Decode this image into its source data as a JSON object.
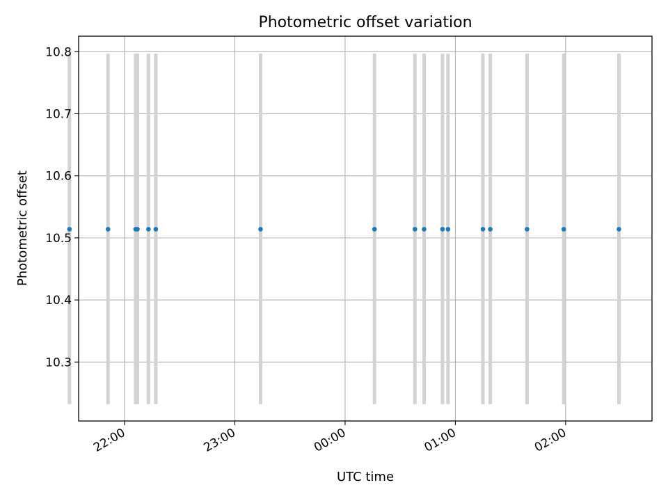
{
  "chart_data": {
    "type": "scatter",
    "title": "Photometric offset variation",
    "xlabel": "UTC time",
    "ylabel": "Photometric offset",
    "xlim": [
      "21:35",
      "02:47"
    ],
    "ylim": [
      10.205,
      10.825
    ],
    "x_ticks": [
      "22:00",
      "23:00",
      "00:00",
      "01:00",
      "02:00"
    ],
    "y_ticks": [
      "10.3",
      "10.4",
      "10.5",
      "10.6",
      "10.7",
      "10.8"
    ],
    "grid": true,
    "marker_color": "#1f77b4",
    "errorbar_color": "#d3d3d3",
    "points": [
      {
        "x": "21:30",
        "y": 10.514,
        "err_low": 10.232,
        "err_high": 10.797
      },
      {
        "x": "21:51",
        "y": 10.514,
        "err_low": 10.232,
        "err_high": 10.797
      },
      {
        "x": "22:06",
        "y": 10.514,
        "err_low": 10.232,
        "err_high": 10.797
      },
      {
        "x": "22:07",
        "y": 10.514,
        "err_low": 10.232,
        "err_high": 10.797
      },
      {
        "x": "22:13",
        "y": 10.514,
        "err_low": 10.232,
        "err_high": 10.797
      },
      {
        "x": "22:17",
        "y": 10.514,
        "err_low": 10.232,
        "err_high": 10.797
      },
      {
        "x": "23:14",
        "y": 10.514,
        "err_low": 10.232,
        "err_high": 10.797
      },
      {
        "x": "00:16",
        "y": 10.514,
        "err_low": 10.232,
        "err_high": 10.797
      },
      {
        "x": "00:38",
        "y": 10.514,
        "err_low": 10.232,
        "err_high": 10.797
      },
      {
        "x": "00:43",
        "y": 10.514,
        "err_low": 10.232,
        "err_high": 10.797
      },
      {
        "x": "00:53",
        "y": 10.514,
        "err_low": 10.232,
        "err_high": 10.797
      },
      {
        "x": "00:56",
        "y": 10.514,
        "err_low": 10.232,
        "err_high": 10.797
      },
      {
        "x": "01:15",
        "y": 10.514,
        "err_low": 10.232,
        "err_high": 10.797
      },
      {
        "x": "01:19",
        "y": 10.514,
        "err_low": 10.232,
        "err_high": 10.797
      },
      {
        "x": "01:39",
        "y": 10.514,
        "err_low": 10.232,
        "err_high": 10.797
      },
      {
        "x": "01:59",
        "y": 10.514,
        "err_low": 10.232,
        "err_high": 10.797
      },
      {
        "x": "02:29",
        "y": 10.514,
        "err_low": 10.232,
        "err_high": 10.797
      }
    ]
  }
}
